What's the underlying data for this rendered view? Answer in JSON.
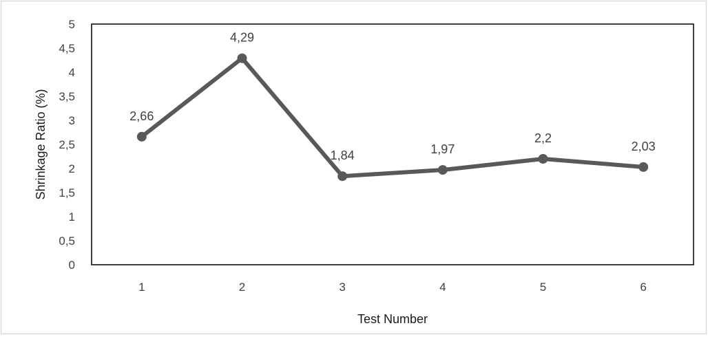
{
  "chart_data": {
    "type": "line",
    "categories": [
      "1",
      "2",
      "3",
      "4",
      "5",
      "6"
    ],
    "series": [
      {
        "values": [
          2.66,
          4.29,
          1.84,
          1.97,
          2.2,
          2.03
        ],
        "data_labels": [
          "2,66",
          "4,29",
          "1,84",
          "1,97",
          "2,2",
          "2,03"
        ],
        "color": "#595959"
      }
    ],
    "xlabel": "Test Number",
    "ylabel": "Shrinkage Ratio (%)",
    "ylim": [
      0,
      5
    ],
    "yticks": [
      0,
      0.5,
      1,
      1.5,
      2,
      2.5,
      3,
      3.5,
      4,
      4.5,
      5
    ],
    "ytick_labels": [
      "0",
      "0,5",
      "1",
      "1,5",
      "2",
      "2,5",
      "3",
      "3,5",
      "4",
      "4,5",
      "5"
    ],
    "grid": false,
    "legend": "none",
    "plot_border_color": "#000000",
    "outer_border_color": "#d9d9d9"
  }
}
